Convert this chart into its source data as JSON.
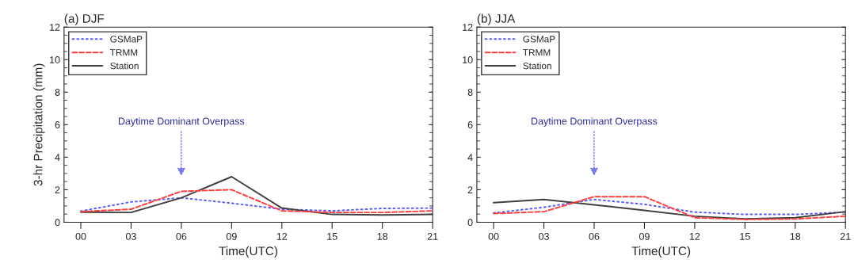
{
  "chart_data": [
    {
      "type": "line",
      "title": "(a) DJF",
      "xlabel": "Time(UTC)",
      "ylabel": "3-hr Precipitation (mm)",
      "x": [
        0,
        3,
        6,
        9,
        12,
        15,
        18,
        21
      ],
      "xlim": [
        -1,
        21
      ],
      "xticks": [
        {
          "value": 0,
          "label": "00"
        },
        {
          "value": 3,
          "label": "03"
        },
        {
          "value": 6,
          "label": "06"
        },
        {
          "value": 9,
          "label": "09"
        },
        {
          "value": 12,
          "label": "12"
        },
        {
          "value": 15,
          "label": "15"
        },
        {
          "value": 18,
          "label": "18"
        },
        {
          "value": 21,
          "label": "21"
        }
      ],
      "ylim": [
        0,
        12
      ],
      "yticks": [
        0,
        2,
        4,
        6,
        8,
        10,
        12
      ],
      "legend": "top left",
      "grid": false,
      "annotations": [
        "Daytime Dominant Overpass"
      ],
      "series": [
        {
          "name": "GSMaP",
          "color": "#5a5aff",
          "line_style": "dotted",
          "values": [
            0.68,
            1.25,
            1.5,
            1.17,
            0.8,
            0.7,
            0.85,
            0.87
          ]
        },
        {
          "name": "TRMM",
          "color": "#ff3c3c",
          "line_style": "dashed",
          "values": [
            0.65,
            0.8,
            1.9,
            2.0,
            0.7,
            0.6,
            0.6,
            0.7
          ]
        },
        {
          "name": "Station",
          "color": "#404040",
          "line_style": "solid",
          "values": [
            0.62,
            0.6,
            1.5,
            2.8,
            0.87,
            0.48,
            0.45,
            0.48
          ]
        }
      ]
    },
    {
      "type": "line",
      "title": "(b) JJA",
      "xlabel": "Time(UTC)",
      "x": [
        0,
        3,
        6,
        9,
        12,
        15,
        18,
        21
      ],
      "xlim": [
        -1,
        21
      ],
      "xticks": [
        {
          "value": 0,
          "label": "00"
        },
        {
          "value": 3,
          "label": "03"
        },
        {
          "value": 6,
          "label": "06"
        },
        {
          "value": 9,
          "label": "09"
        },
        {
          "value": 12,
          "label": "12"
        },
        {
          "value": 15,
          "label": "15"
        },
        {
          "value": 18,
          "label": "18"
        },
        {
          "value": 21,
          "label": "21"
        }
      ],
      "ylim": [
        0,
        12
      ],
      "yticks": [
        0,
        2,
        4,
        6,
        8,
        10,
        12
      ],
      "legend": "top left",
      "grid": false,
      "annotations": [
        "Daytime Dominant Overpass"
      ],
      "series": [
        {
          "name": "GSMaP",
          "color": "#5a5aff",
          "line_style": "dotted",
          "values": [
            0.57,
            0.92,
            1.4,
            1.1,
            0.62,
            0.48,
            0.48,
            0.62
          ]
        },
        {
          "name": "TRMM",
          "color": "#ff3c3c",
          "line_style": "dashed",
          "values": [
            0.53,
            0.65,
            1.57,
            1.57,
            0.28,
            0.17,
            0.2,
            0.37
          ]
        },
        {
          "name": "Station",
          "color": "#404040",
          "line_style": "solid",
          "values": [
            1.2,
            1.4,
            1.07,
            0.73,
            0.37,
            0.2,
            0.28,
            0.65
          ]
        }
      ]
    }
  ]
}
